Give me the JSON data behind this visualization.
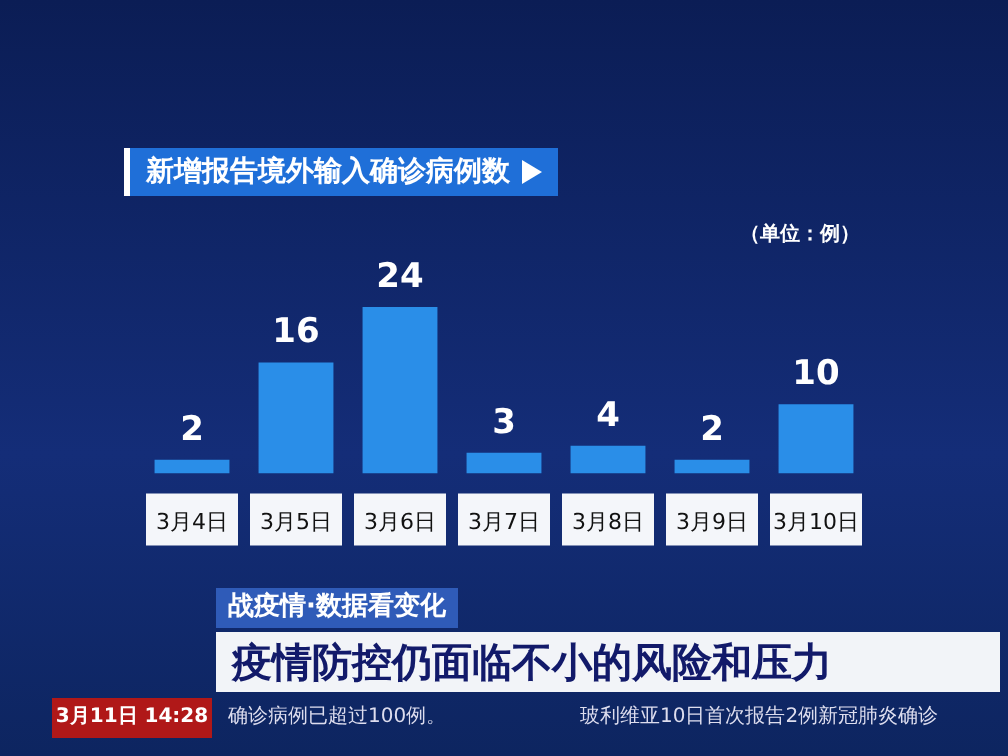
{
  "chart_data": {
    "type": "bar",
    "title": "新增报告境外输入确诊病例数",
    "subtitle": "（单位：例）",
    "categories": [
      "3月4日",
      "3月5日",
      "3月6日",
      "3月7日",
      "3月8日",
      "3月9日",
      "3月10日"
    ],
    "values": [
      2,
      16,
      24,
      3,
      4,
      2,
      10
    ],
    "color": "#2a8ee8",
    "data_labels": true,
    "grid": false,
    "legend": false,
    "annotations": [
      "战疫情·数据看变化",
      "疫情防控仍面临不小的风险和压力",
      "3月11日 14:28",
      "确诊病例已超过100例。",
      "玻利维亚10日首次报告2例新冠肺炎确诊"
    ]
  }
}
